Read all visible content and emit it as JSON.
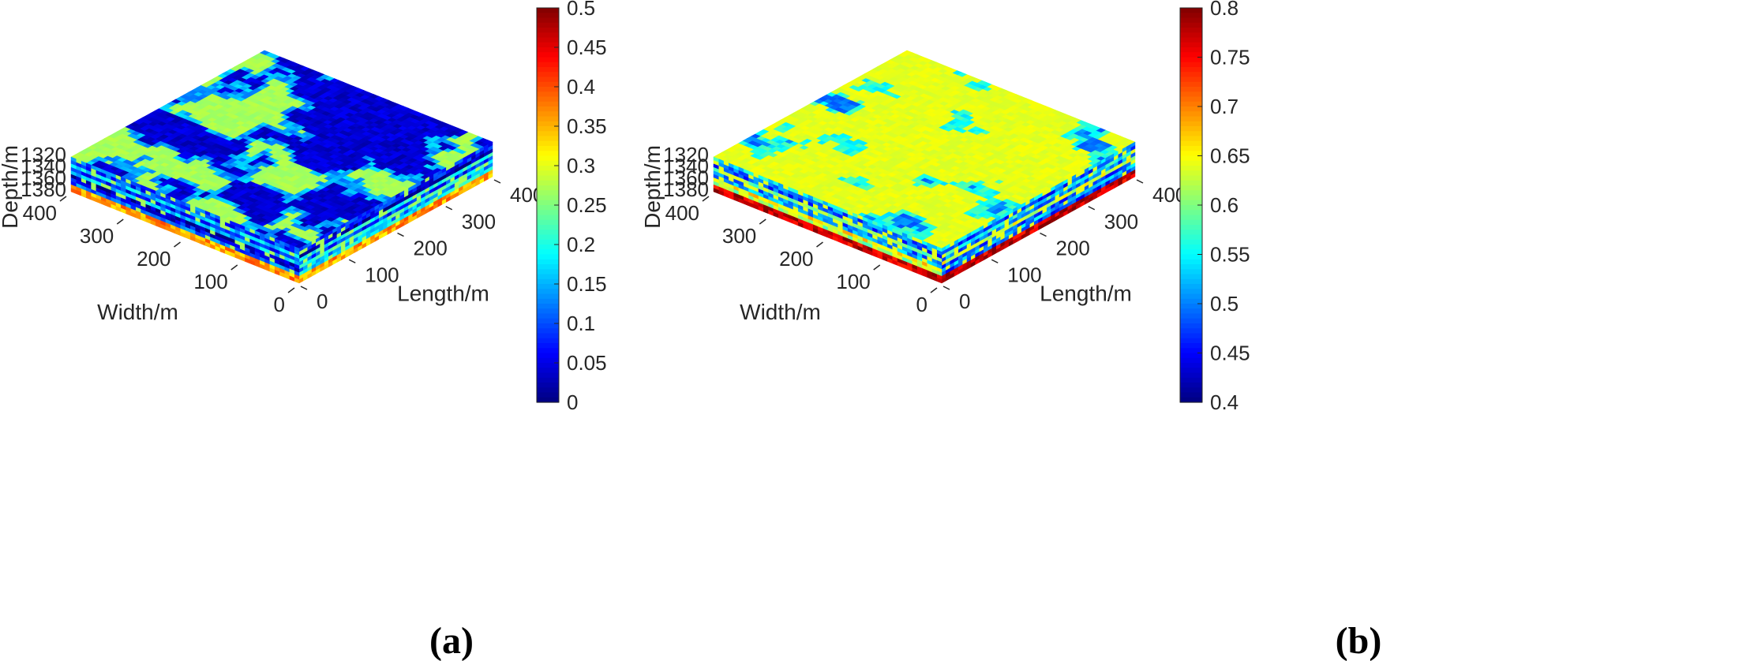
{
  "chart_data": [
    {
      "type": "heatmap",
      "subtype": "3d-block-volume",
      "panel_label": "(a)",
      "axes": {
        "x": {
          "label": "Length/m",
          "ticks": [
            "0",
            "100",
            "200",
            "300",
            "400"
          ],
          "range": [
            0,
            400
          ]
        },
        "y": {
          "label": "Width/m",
          "ticks": [
            "0",
            "100",
            "200",
            "300",
            "400"
          ],
          "range": [
            0,
            400
          ]
        },
        "z": {
          "label": "Depth/m",
          "ticks": [
            "1320",
            "1340",
            "1360",
            "1380"
          ],
          "direction": "downward"
        }
      },
      "colorbar": {
        "colormap": "jet",
        "range": [
          0,
          0.5
        ],
        "ticks": [
          "0",
          "0.05",
          "0.1",
          "0.15",
          "0.2",
          "0.25",
          "0.3",
          "0.35",
          "0.4",
          "0.45",
          "0.5"
        ]
      },
      "field": {
        "top_low": 0.02,
        "top_high": 0.27,
        "top_high_fraction": 0.45,
        "side_mean": 0.12,
        "side_spread": 0.12,
        "bottom_band_value": 0.36
      }
    },
    {
      "type": "heatmap",
      "subtype": "3d-block-volume",
      "panel_label": "(b)",
      "axes": {
        "x": {
          "label": "Length/m",
          "ticks": [
            "0",
            "100",
            "200",
            "300",
            "400"
          ],
          "range": [
            0,
            400
          ]
        },
        "y": {
          "label": "Width/m",
          "ticks": [
            "0",
            "100",
            "200",
            "300",
            "400"
          ],
          "range": [
            0,
            400
          ]
        },
        "z": {
          "label": "Depth/m",
          "ticks": [
            "1320",
            "1340",
            "1360",
            "1380"
          ],
          "direction": "downward"
        }
      },
      "colorbar": {
        "colormap": "jet",
        "range": [
          0.4,
          0.8
        ],
        "ticks": [
          "0.4",
          "0.45",
          "0.5",
          "0.55",
          "0.6",
          "0.65",
          "0.7",
          "0.75",
          "0.8"
        ]
      },
      "field": {
        "top_low": 0.48,
        "top_high": 0.64,
        "top_high_fraction": 0.72,
        "side_mean": 0.56,
        "side_spread": 0.1,
        "bottom_band_value": 0.77
      }
    }
  ]
}
